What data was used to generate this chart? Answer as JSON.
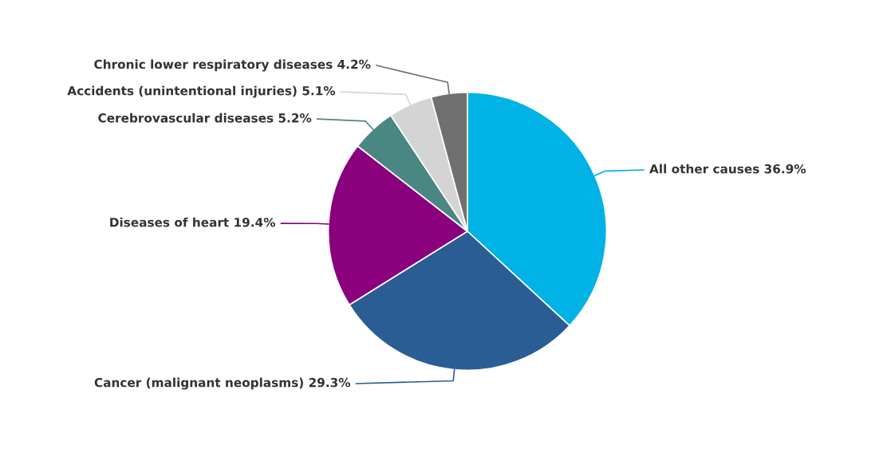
{
  "chart_data": {
    "type": "pie",
    "categories": [
      "All other causes",
      "Cancer (malignant neoplasms)",
      "Diseases of heart",
      "Cerebrovascular diseases",
      "Accidents (unintentional injuries)",
      "Chronic lower respiratory diseases"
    ],
    "values": [
      36.9,
      29.3,
      19.4,
      5.2,
      5.1,
      4.2
    ],
    "value_labels": [
      "36.9%",
      "29.3%",
      "19.4%",
      "5.2%",
      "5.1%",
      "4.2%"
    ],
    "colors": [
      "#00b2e5",
      "#2b5d95",
      "#8a007d",
      "#4a8682",
      "#d4d4d4",
      "#707070"
    ],
    "legend": false
  }
}
